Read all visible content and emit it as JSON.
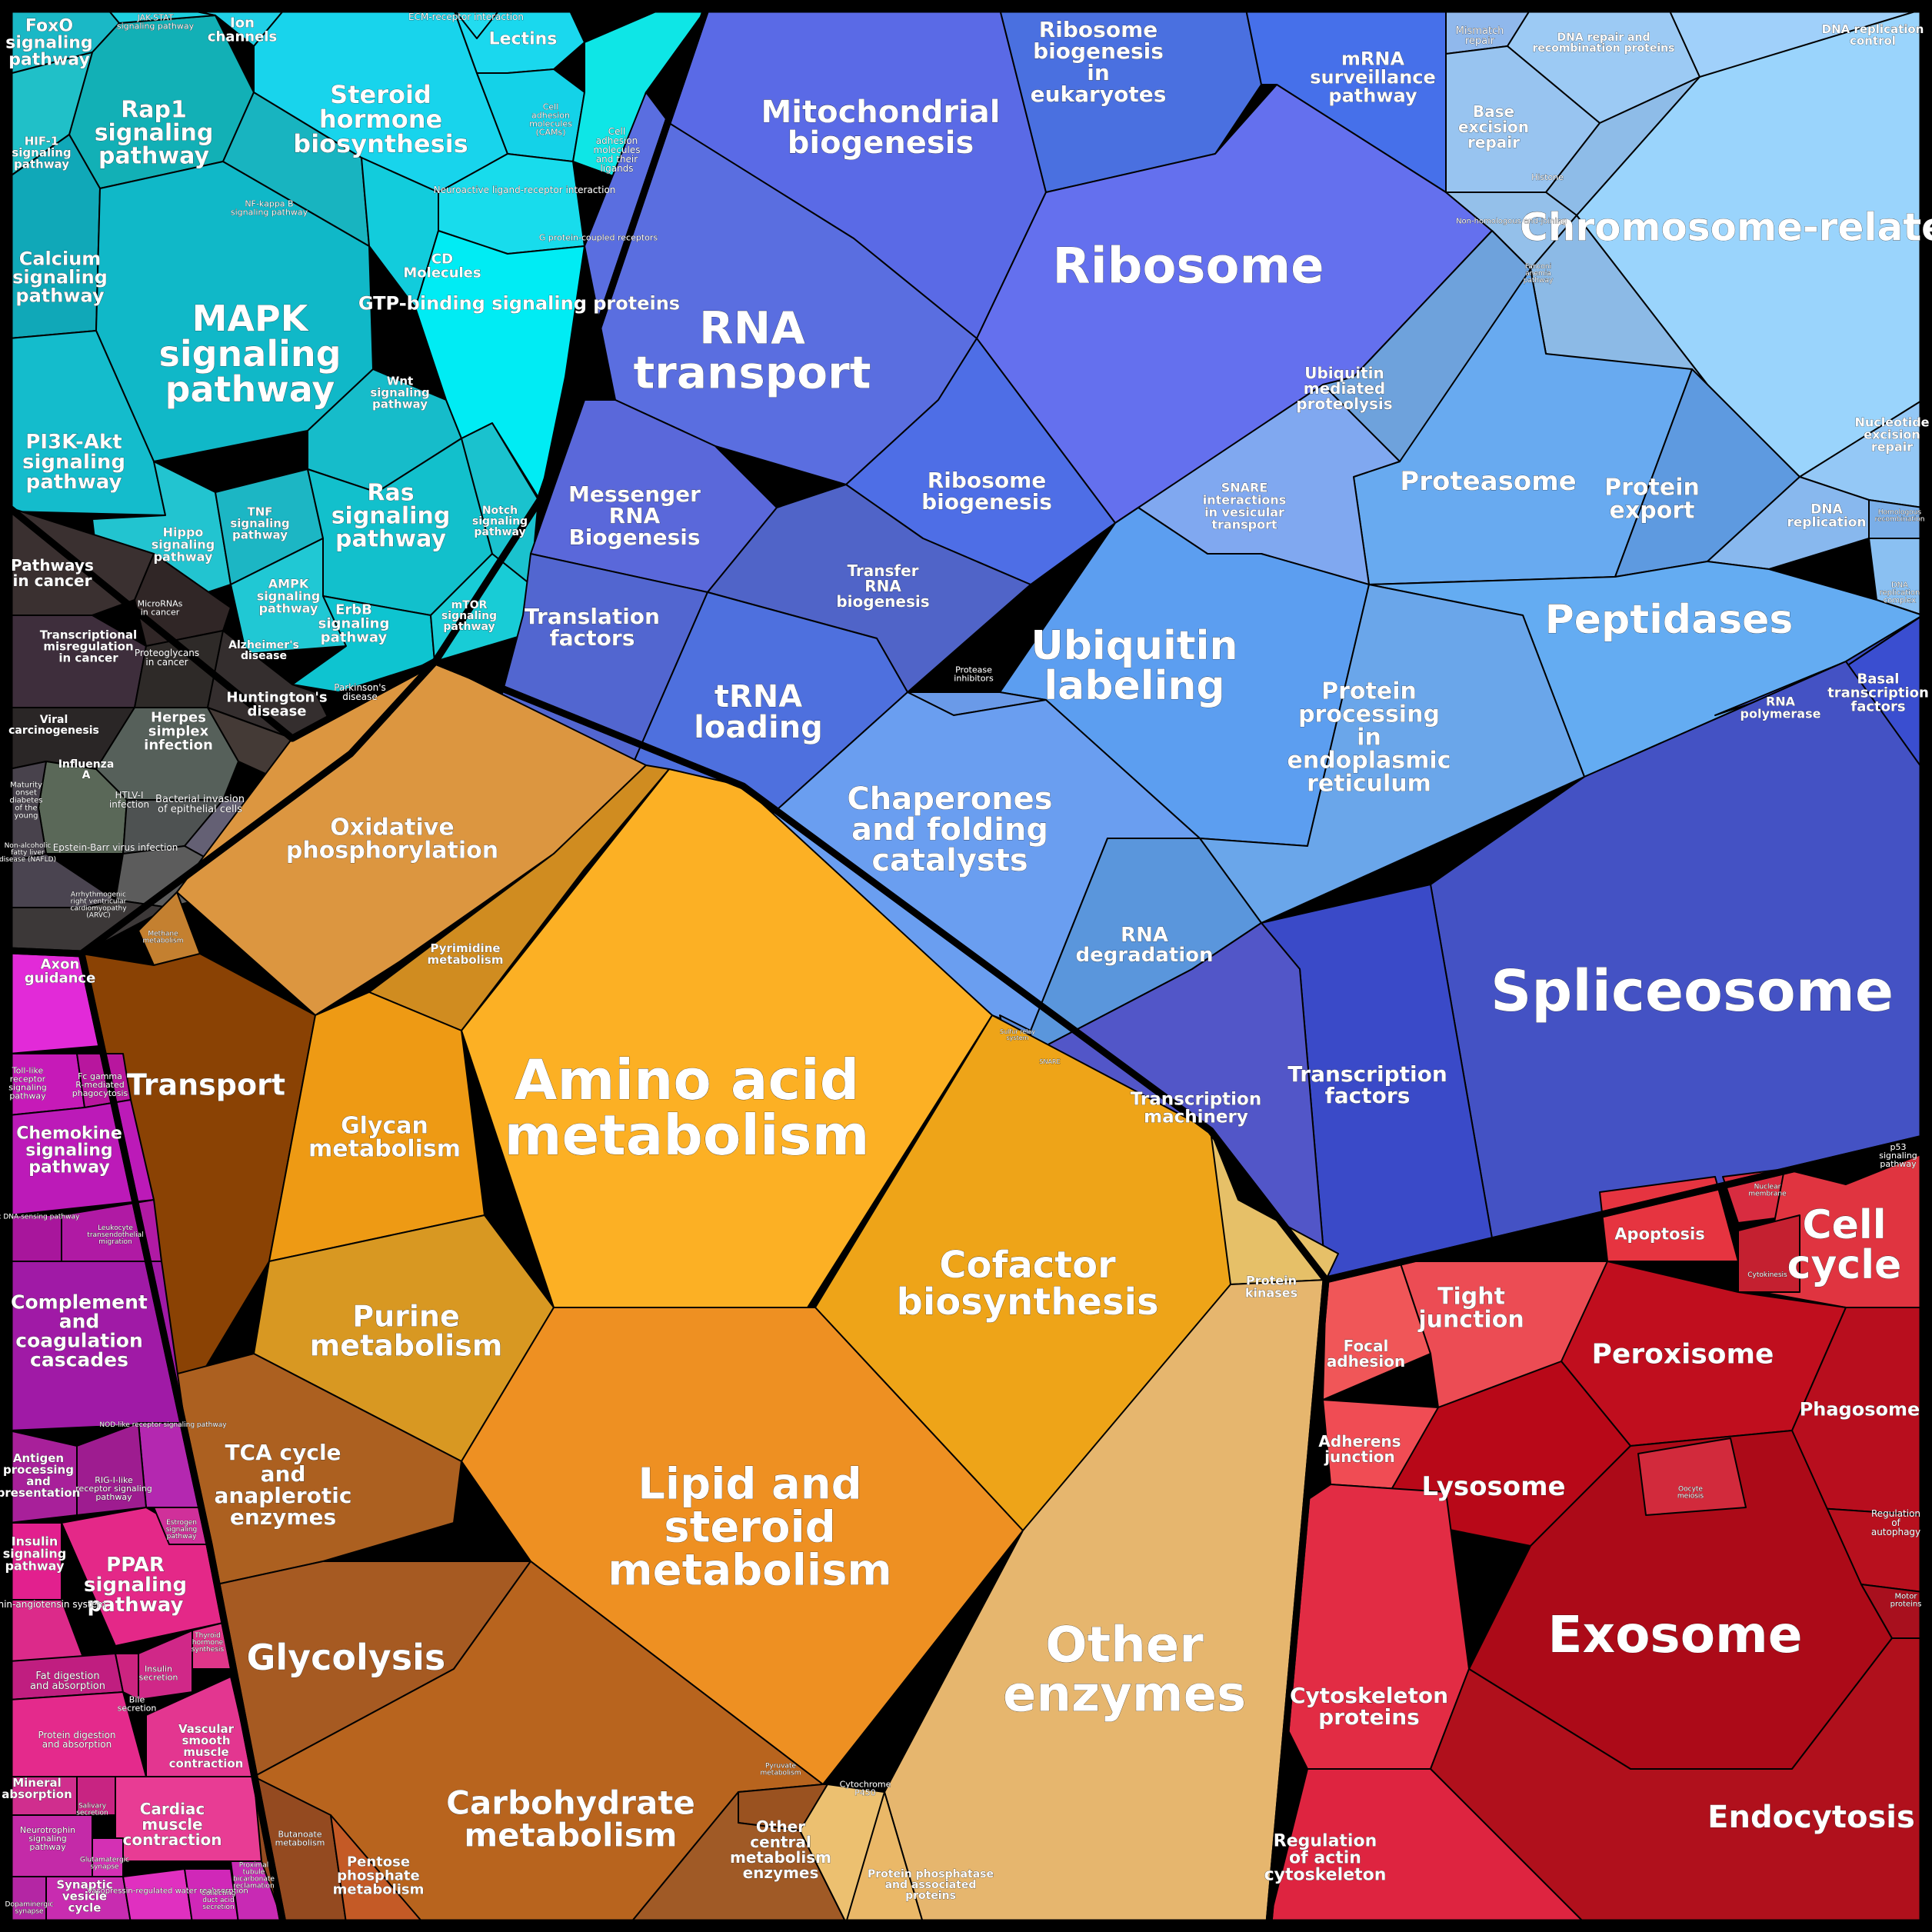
{
  "sector_colors": {
    "signaling": "#00c8d8",
    "disease": "#3a3030",
    "organismal": "#d0208c",
    "genetic": "#5a66e6",
    "metabolism": "#f0a020",
    "cellular": "#e02838",
    "other": "#e6b470"
  },
  "cells": [
    {
      "id": "c1",
      "label": "FoxO signaling pathway",
      "color": "#1ab8c6"
    },
    {
      "id": "c2",
      "label": "Rap1 signaling pathway",
      "color": "#12b0b6"
    },
    {
      "id": "c3",
      "label": "HIF-1 signaling pathway",
      "color": "#20c0c8"
    },
    {
      "id": "c4",
      "label": "Calcium signaling pathway",
      "color": "#10a8b8"
    },
    {
      "id": "c5",
      "label": "MAPK signaling pathway",
      "color": "#10b8c8"
    },
    {
      "id": "c6",
      "label": "NF-kappa B signaling pathway",
      "color": "#18b4c0"
    },
    {
      "id": "c7",
      "label": "PI3K-Akt signaling pathway",
      "color": "#14bccc"
    },
    {
      "id": "c8",
      "label": "Hippo signaling pathway",
      "color": "#22c4d0"
    },
    {
      "id": "c9",
      "label": "TNF signaling pathway",
      "color": "#1cb6c4"
    },
    {
      "id": "c10",
      "label": "Wnt signaling pathway",
      "color": "#16bcca"
    },
    {
      "id": "c11",
      "label": "Ras signaling pathway",
      "color": "#12c0cc"
    },
    {
      "id": "c12",
      "label": "AMPK signaling pathway",
      "color": "#20c8d4"
    },
    {
      "id": "c13",
      "label": "ErbB signaling pathway",
      "color": "#0ec4d0"
    },
    {
      "id": "c14",
      "label": "mTOR signaling pathway",
      "color": "#18ccd6"
    },
    {
      "id": "c15",
      "label": "Notch signaling pathway",
      "color": "#1ac2ce"
    },
    {
      "id": "c16",
      "label": "Ion channels",
      "color": "#20d0e6"
    },
    {
      "id": "c17",
      "label": "Steroid hormone biosynthesis",
      "color": "#18d4ec"
    },
    {
      "id": "c18",
      "label": "Lectins",
      "color": "#1ad8ee"
    },
    {
      "id": "c19",
      "label": "ECM-receptor interaction",
      "color": "#22dcf0"
    },
    {
      "id": "c20",
      "label": "Cell adhesion molecules (CAMs)",
      "color": "#14d2e8"
    },
    {
      "id": "c21",
      "label": "Cell adhesion molecules and their ligands",
      "color": "#0ee6e6"
    },
    {
      "id": "c22",
      "label": "Neuroactive ligand-receptor interaction",
      "color": "#18dcec"
    },
    {
      "id": "c23",
      "label": "CD Molecules",
      "color": "#12ccdc"
    },
    {
      "id": "c24",
      "label": "GTP-binding signaling proteins",
      "color": "#00ecf4"
    },
    {
      "id": "c25",
      "label": "G protein-coupled receptors",
      "color": "#10e2ee"
    },
    {
      "id": "c26",
      "label": "JAK-STAT signaling pathway",
      "color": "#1ed0e0"
    },
    {
      "id": "c27",
      "label": "Pathways in cancer",
      "color": "#3a3030"
    },
    {
      "id": "c28",
      "label": "MicroRNAs in cancer",
      "color": "#302626"
    },
    {
      "id": "c29",
      "label": "Transcriptional misregulation in cancer",
      "color": "#3e2e3c"
    },
    {
      "id": "c30",
      "label": "Proteoglycans in cancer",
      "color": "#2e2a28"
    },
    {
      "id": "c31",
      "label": "Alzheimer's disease",
      "color": "#342e2e"
    },
    {
      "id": "c32",
      "label": "Viral carcinogenesis",
      "color": "#2a2626"
    },
    {
      "id": "c33",
      "label": "Herpes simplex infection",
      "color": "#56605a"
    },
    {
      "id": "c34",
      "label": "Huntington's disease",
      "color": "#443a36"
    },
    {
      "id": "c35",
      "label": "Parkinson's disease",
      "color": "#302e2e"
    },
    {
      "id": "c36",
      "label": "Influenza A",
      "color": "#5a6858"
    },
    {
      "id": "c37",
      "label": "HTLV-I infection",
      "color": "#4e5252"
    },
    {
      "id": "c38",
      "label": "Bacterial invasion of epithelial cells",
      "color": "#646074"
    },
    {
      "id": "c39",
      "label": "Maturity onset diabetes of the young",
      "color": "#48424c"
    },
    {
      "id": "c40",
      "label": "Epstein-Barr virus infection",
      "color": "#5c5c5c"
    },
    {
      "id": "c41",
      "label": "Non-alcoholic fatty liver disease (NAFLD)",
      "color": "#4a4450"
    },
    {
      "id": "c42",
      "label": "Arrhythmogenic right ventricular cardiomyopathy (ARVC)",
      "color": "#3c3838"
    },
    {
      "id": "c43",
      "label": "Mitochondrial biogenesis",
      "color": "#5a6ae6"
    },
    {
      "id": "c44",
      "label": "Ribosome biogenesis in eukaryotes",
      "color": "#4a70e0"
    },
    {
      "id": "c45",
      "label": "mRNA surveillance pathway",
      "color": "#4670ea"
    },
    {
      "id": "c46",
      "label": "RNA transport",
      "color": "#5a6ee0"
    },
    {
      "id": "c47",
      "label": "Ribosome",
      "color": "#6470ee"
    },
    {
      "id": "c48",
      "label": "Messenger RNA Biogenesis",
      "color": "#5a68da"
    },
    {
      "id": "c49",
      "label": "Ribosome biogenesis",
      "color": "#4e6ee6"
    },
    {
      "id": "c50",
      "label": "Transfer RNA biogenesis",
      "color": "#5064c8"
    },
    {
      "id": "c51",
      "label": "Translation factors",
      "color": "#5266d0"
    },
    {
      "id": "c52",
      "label": "tRNA loading",
      "color": "#4e70de"
    },
    {
      "id": "c53",
      "label": "Mismatch repair",
      "color": "#90b8ec"
    },
    {
      "id": "c54",
      "label": "DNA repair and recombination proteins",
      "color": "#9ccaf4"
    },
    {
      "id": "c55",
      "label": "DNA replication control",
      "color": "#a0d0fa"
    },
    {
      "id": "c56",
      "label": "Base excision repair",
      "color": "#98c4f0"
    },
    {
      "id": "c57",
      "label": "Histone",
      "color": "#8ebce8"
    },
    {
      "id": "c58",
      "label": "Chromosome-related",
      "color": "#9ad4fc"
    },
    {
      "id": "c59",
      "label": "Non-homologous end-joining",
      "color": "#94c0ea"
    },
    {
      "id": "c60",
      "label": "Fanconi anemia pathway",
      "color": "#8cbae6"
    },
    {
      "id": "c61",
      "label": "Ubiquitin mediated proteolysis",
      "color": "#6ea2dc"
    },
    {
      "id": "c62",
      "label": "Proteasome",
      "color": "#68aaf0"
    },
    {
      "id": "c63",
      "label": "Protein export",
      "color": "#5e9ae0"
    },
    {
      "id": "c64",
      "label": "Nucleotide excision repair",
      "color": "#94c8f6"
    },
    {
      "id": "c65",
      "label": "DNA replication",
      "color": "#88b8ee"
    },
    {
      "id": "c66",
      "label": "Homologous recombination",
      "color": "#7aaee8"
    },
    {
      "id": "c67",
      "label": "DNA replication complex",
      "color": "#8ac0f2"
    },
    {
      "id": "c68",
      "label": "SNARE interactions in vesicular transport",
      "color": "#80a8f0"
    },
    {
      "id": "c69",
      "label": "Peptidases",
      "color": "#64acf2"
    },
    {
      "id": "c70",
      "label": "Ubiquitin labeling",
      "color": "#5c9ef0"
    },
    {
      "id": "c71",
      "label": "Protease inhibitors",
      "color": "#6a9ae8"
    },
    {
      "id": "c72",
      "label": "Protein processing in endoplasmic reticulum",
      "color": "#6aa6ea"
    },
    {
      "id": "c73",
      "label": "RNA polymerase",
      "color": "#3c50c8"
    },
    {
      "id": "c74",
      "label": "Basal transcription factors",
      "color": "#3a4ed0"
    },
    {
      "id": "c75",
      "label": "Chaperones and folding catalysts",
      "color": "#6a9ef0"
    },
    {
      "id": "c76",
      "label": "RNA degradation",
      "color": "#5a96dc"
    },
    {
      "id": "c77",
      "label": "Spliceosome",
      "color": "#4452c4"
    },
    {
      "id": "c78",
      "label": "Transcription factors",
      "color": "#3a4ac8"
    },
    {
      "id": "c79",
      "label": "Transcription machinery",
      "color": "#5256c8"
    },
    {
      "id": "c80",
      "label": "Sulfur relay system",
      "color": "#5a8ad8"
    },
    {
      "id": "c81",
      "label": "SNARE",
      "color": "#4a7ccc"
    },
    {
      "id": "c82",
      "label": "Oxidative phosphorylation",
      "color": "#dc9640"
    },
    {
      "id": "c83",
      "label": "Pyrimidine metabolism",
      "color": "#d08c20"
    },
    {
      "id": "c84",
      "label": "Methane metabolism",
      "color": "#c48030"
    },
    {
      "id": "c85",
      "label": "Transport",
      "color": "#8a4204"
    },
    {
      "id": "c86",
      "label": "Glycan metabolism",
      "color": "#ee9a14"
    },
    {
      "id": "c87",
      "label": "Amino acid metabolism",
      "color": "#fcb024"
    },
    {
      "id": "c88",
      "label": "Cofactor biosynthesis",
      "color": "#eea418"
    },
    {
      "id": "c89",
      "label": "Purine metabolism",
      "color": "#d89822"
    },
    {
      "id": "c90",
      "label": "TCA cycle and anaplerotic enzymes",
      "color": "#ac6020"
    },
    {
      "id": "c91",
      "label": "Lipid and steroid metabolism",
      "color": "#ee9022"
    },
    {
      "id": "c92",
      "label": "Glycolysis",
      "color": "#a65a22"
    },
    {
      "id": "c93",
      "label": "Carbohydrate metabolism",
      "color": "#b8641e"
    },
    {
      "id": "c94",
      "label": "Pyruvate metabolism",
      "color": "#9a5220"
    },
    {
      "id": "c95",
      "label": "Other central metabolism enzymes",
      "color": "#a05a26"
    },
    {
      "id": "c96",
      "label": "Butanoate metabolism",
      "color": "#944a20"
    },
    {
      "id": "c97",
      "label": "Pentose phosphate metabolism",
      "color": "#c45a26"
    },
    {
      "id": "c98",
      "label": "Protein kinases",
      "color": "#e6c068"
    },
    {
      "id": "c99",
      "label": "Other enzymes",
      "color": "#e6b66e"
    },
    {
      "id": "c100",
      "label": "Cytochrome P450",
      "color": "#ecc070"
    },
    {
      "id": "c101",
      "label": "Protein phosphatase and associated proteins",
      "color": "#eab868"
    },
    {
      "id": "c102",
      "label": "Axon guidance",
      "color": "#e22ad8"
    },
    {
      "id": "c103",
      "label": "Toll-like receptor signaling pathway",
      "color": "#c61ab8"
    },
    {
      "id": "c104",
      "label": "Fc gamma R-mediated phagocytosis",
      "color": "#b8169e"
    },
    {
      "id": "c105",
      "label": "Chemokine signaling pathway",
      "color": "#bc1ab8"
    },
    {
      "id": "c106",
      "label": "Cytosolic DNA-sensing pathway",
      "color": "#a8169c"
    },
    {
      "id": "c107",
      "label": "Leukocyte transendothelial migration",
      "color": "#b01aa4"
    },
    {
      "id": "c108",
      "label": "Complement and coagulation cascades",
      "color": "#a01aa6"
    },
    {
      "id": "c109",
      "label": "NOD-like receptor signaling pathway",
      "color": "#b428b0"
    },
    {
      "id": "c110",
      "label": "Antigen processing and presentation",
      "color": "#a8209a"
    },
    {
      "id": "c111",
      "label": "RIG-I-like receptor signaling pathway",
      "color": "#9e1c90"
    },
    {
      "id": "c112",
      "label": "Insulin signaling pathway",
      "color": "#e2208e"
    },
    {
      "id": "c113",
      "label": "PPAR signaling pathway",
      "color": "#e42888"
    },
    {
      "id": "c114",
      "label": "Renin-angiotensin system",
      "color": "#dc2a8a"
    },
    {
      "id": "c115",
      "label": "Estrogen signaling pathway",
      "color": "#d0309a"
    },
    {
      "id": "c116",
      "label": "Thyroid hormone synthesis",
      "color": "#e0368a"
    },
    {
      "id": "c117",
      "label": "Insulin secretion",
      "color": "#d02888"
    },
    {
      "id": "c118",
      "label": "Fat digestion and absorption",
      "color": "#c01e80"
    },
    {
      "id": "c119",
      "label": "Bile secretion",
      "color": "#cc2480"
    },
    {
      "id": "c120",
      "label": "Protein digestion and absorption",
      "color": "#e42a8c"
    },
    {
      "id": "c121",
      "label": "Vascular smooth muscle contraction",
      "color": "#e33690"
    },
    {
      "id": "c122",
      "label": "Mineral absorption",
      "color": "#d02e8e"
    },
    {
      "id": "c123",
      "label": "Salivary secretion",
      "color": "#c82482"
    },
    {
      "id": "c124",
      "label": "Cardiac muscle contraction",
      "color": "#e83c94"
    },
    {
      "id": "c125",
      "label": "Neurotrophin signaling pathway",
      "color": "#c42aa8"
    },
    {
      "id": "c126",
      "label": "Glutamatergic synapse",
      "color": "#d430b4"
    },
    {
      "id": "c127",
      "label": "Synaptic vesicle cycle",
      "color": "#c82cb0"
    },
    {
      "id": "c128",
      "label": "Dopaminergic synapse",
      "color": "#b426a4"
    },
    {
      "id": "c129",
      "label": "Vasopressin-regulated water reabsorption",
      "color": "#e030c0"
    },
    {
      "id": "c130",
      "label": "Collecting duct acid secretion",
      "color": "#d028b8"
    },
    {
      "id": "c131",
      "label": "Proximal tubule bicarbonate reclamation",
      "color": "#c82ab4"
    },
    {
      "id": "c132",
      "label": "p53 signaling pathway",
      "color": "#e83c46"
    },
    {
      "id": "c133",
      "label": "Apoptosis",
      "color": "#e63440"
    },
    {
      "id": "c134",
      "label": "Nuclear membrane",
      "color": "#d82c40"
    },
    {
      "id": "c135",
      "label": "Cell cycle",
      "color": "#e03440"
    },
    {
      "id": "c136",
      "label": "Cytokinesis",
      "color": "#c42030"
    },
    {
      "id": "c137",
      "label": "Focal adhesion",
      "color": "#f05658"
    },
    {
      "id": "c138",
      "label": "Tight junction",
      "color": "#ec4c54"
    },
    {
      "id": "c139",
      "label": "Peroxisome",
      "color": "#c00e1e"
    },
    {
      "id": "c140",
      "label": "Phagosome",
      "color": "#b80e1e"
    },
    {
      "id": "c141",
      "label": "Adherens junction",
      "color": "#f04c54"
    },
    {
      "id": "c142",
      "label": "Lysosome",
      "color": "#b80818"
    },
    {
      "id": "c143",
      "label": "Regulation of autophagy",
      "color": "#b8101e"
    },
    {
      "id": "c144",
      "label": "Exosome",
      "color": "#ac0a18"
    },
    {
      "id": "c145",
      "label": "Motor proteins",
      "color": "#a8101e"
    },
    {
      "id": "c146",
      "label": "Cytoskeleton proteins",
      "color": "#e22c44"
    },
    {
      "id": "c147",
      "label": "Endocytosis",
      "color": "#b0101c"
    },
    {
      "id": "c148",
      "label": "Regulation of actin cytoskeleton",
      "color": "#de2440"
    },
    {
      "id": "c149",
      "label": "Oocyte meiosis",
      "color": "#d22a3c"
    }
  ]
}
